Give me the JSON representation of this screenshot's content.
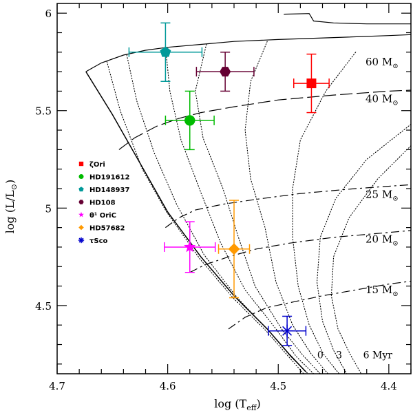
{
  "chart_data": {
    "type": "scatter",
    "title": "",
    "xlabel": "log (T",
    "xlabel_sub": "eff",
    "xlabel_close": ")",
    "ylabel": "log (L/L",
    "ylabel_close": ")",
    "xlim": [
      4.7,
      4.38
    ],
    "ylim": [
      4.15,
      6.05
    ],
    "x_reversed": true,
    "xticks": [
      {
        "value": 4.7,
        "label": "4.7"
      },
      {
        "value": 4.6,
        "label": "4.6"
      },
      {
        "value": 4.5,
        "label": "4.5"
      },
      {
        "value": 4.4,
        "label": "4.4"
      }
    ],
    "yticks": [
      {
        "value": 4.5,
        "label": "4.5"
      },
      {
        "value": 5.0,
        "label": "5"
      },
      {
        "value": 5.5,
        "label": "5.5"
      },
      {
        "value": 6.0,
        "label": "6"
      }
    ],
    "legend_position": "middle-left",
    "series": [
      {
        "name": "ζOri",
        "color": "#ff0000",
        "marker": "square",
        "x": 4.47,
        "y": 5.64,
        "xerr": 0.016,
        "yerr": 0.15
      },
      {
        "name": "HD191612",
        "color": "#00bb00",
        "marker": "circle",
        "x": 4.58,
        "y": 5.45,
        "xerr": 0.022,
        "yerr": 0.15
      },
      {
        "name": "HD148937",
        "color": "#009999",
        "marker": "pentagon",
        "x": 4.602,
        "y": 5.8,
        "xerr": 0.033,
        "yerr": 0.15
      },
      {
        "name": "HD108",
        "color": "#660033",
        "marker": "hexagon",
        "x": 4.548,
        "y": 5.7,
        "xerr": 0.026,
        "yerr": 0.1
      },
      {
        "name": "θ¹ OriC",
        "color": "#ff00ff",
        "marker": "star",
        "x": 4.58,
        "y": 4.8,
        "xerr": 0.023,
        "yerr": 0.13
      },
      {
        "name": "HD57682",
        "color": "#ff9900",
        "marker": "diamond",
        "x": 4.54,
        "y": 4.79,
        "xerr": 0.014,
        "yerr": 0.25
      },
      {
        "name": "τSco",
        "color": "#0000cc",
        "marker": "asterisk",
        "x": 4.492,
        "y": 4.37,
        "xerr": 0.017,
        "yerr": 0.075
      }
    ],
    "tracks": [
      {
        "mass_label": "60 M",
        "label_y": 5.75,
        "dash": "",
        "points": [
          [
            4.674,
            5.7
          ],
          [
            4.66,
            5.745
          ],
          [
            4.64,
            5.785
          ],
          [
            4.62,
            5.81
          ],
          [
            4.6,
            5.825
          ],
          [
            4.57,
            5.84
          ],
          [
            4.54,
            5.855
          ],
          [
            4.5,
            5.865
          ],
          [
            4.45,
            5.875
          ],
          [
            4.4,
            5.885
          ],
          [
            4.38,
            5.89
          ]
        ]
      },
      {
        "mass_label": "40 M",
        "label_y": 5.56,
        "dash": "18,6",
        "points": [
          [
            4.644,
            5.3
          ],
          [
            4.63,
            5.36
          ],
          [
            4.61,
            5.42
          ],
          [
            4.59,
            5.46
          ],
          [
            4.57,
            5.49
          ],
          [
            4.54,
            5.52
          ],
          [
            4.5,
            5.555
          ],
          [
            4.45,
            5.58
          ],
          [
            4.4,
            5.6
          ],
          [
            4.38,
            5.605
          ]
        ]
      },
      {
        "mass_label": "25 M",
        "label_y": 5.07,
        "dash": "12,5,3,5",
        "points": [
          [
            4.602,
            4.9
          ],
          [
            4.59,
            4.95
          ],
          [
            4.575,
            4.99
          ],
          [
            4.55,
            5.02
          ],
          [
            4.52,
            5.045
          ],
          [
            4.48,
            5.075
          ],
          [
            4.43,
            5.1
          ],
          [
            4.38,
            5.12
          ]
        ]
      },
      {
        "mass_label": "20 M",
        "label_y": 4.84,
        "dash": "12,5,3,5",
        "points": [
          [
            4.58,
            4.67
          ],
          [
            4.566,
            4.71
          ],
          [
            4.545,
            4.75
          ],
          [
            4.52,
            4.79
          ],
          [
            4.49,
            4.82
          ],
          [
            4.45,
            4.85
          ],
          [
            4.41,
            4.87
          ],
          [
            4.38,
            4.885
          ]
        ]
      },
      {
        "mass_label": "15 M",
        "label_y": 4.58,
        "dash": "12,5,3,5",
        "points": [
          [
            4.545,
            4.38
          ],
          [
            4.53,
            4.44
          ],
          [
            4.51,
            4.49
          ],
          [
            4.485,
            4.52
          ],
          [
            4.46,
            4.55
          ],
          [
            4.43,
            4.58
          ],
          [
            4.4,
            4.61
          ],
          [
            4.38,
            4.625
          ]
        ]
      }
    ],
    "top_track": {
      "points": [
        [
          4.495,
          5.995
        ],
        [
          4.472,
          5.998
        ],
        [
          4.468,
          5.96
        ],
        [
          4.45,
          5.95
        ],
        [
          4.42,
          5.945
        ],
        [
          4.38,
          5.945
        ]
      ]
    },
    "zams": {
      "points": [
        [
          4.674,
          5.7
        ],
        [
          4.65,
          5.48
        ],
        [
          4.62,
          5.18
        ],
        [
          4.6,
          4.98
        ],
        [
          4.57,
          4.75
        ],
        [
          4.54,
          4.55
        ],
        [
          4.51,
          4.38
        ],
        [
          4.49,
          4.25
        ],
        [
          4.475,
          4.16
        ]
      ]
    },
    "isochrones": [
      {
        "label": "",
        "points": [
          [
            4.655,
            5.752
          ],
          [
            4.643,
            5.5
          ],
          [
            4.623,
            5.2
          ],
          [
            4.601,
            4.98
          ],
          [
            4.571,
            4.74
          ],
          [
            4.541,
            4.54
          ],
          [
            4.511,
            4.37
          ],
          [
            4.491,
            4.24
          ],
          [
            4.477,
            4.15
          ]
        ]
      },
      {
        "label": "",
        "points": [
          [
            4.637,
            5.785
          ],
          [
            4.628,
            5.55
          ],
          [
            4.612,
            5.28
          ],
          [
            4.592,
            5.02
          ],
          [
            4.567,
            4.76
          ],
          [
            4.537,
            4.54
          ],
          [
            4.507,
            4.36
          ],
          [
            4.489,
            4.24
          ],
          [
            4.473,
            4.15
          ]
        ]
      },
      {
        "label": "",
        "points": [
          [
            4.602,
            5.83
          ],
          [
            4.598,
            5.6
          ],
          [
            4.588,
            5.35
          ],
          [
            4.57,
            5.08
          ],
          [
            4.552,
            4.82
          ],
          [
            4.53,
            4.58
          ],
          [
            4.502,
            4.38
          ],
          [
            4.484,
            4.24
          ],
          [
            4.468,
            4.15
          ]
        ]
      },
      {
        "label": "",
        "points": [
          [
            4.565,
            5.84
          ],
          [
            4.575,
            5.6
          ],
          [
            4.568,
            5.36
          ],
          [
            4.55,
            5.1
          ],
          [
            4.536,
            4.85
          ],
          [
            4.521,
            4.6
          ],
          [
            4.497,
            4.38
          ],
          [
            4.477,
            4.24
          ],
          [
            4.462,
            4.15
          ]
        ]
      },
      {
        "label": "",
        "points": [
          [
            4.51,
            5.855
          ],
          [
            4.525,
            5.65
          ],
          [
            4.53,
            5.4
          ],
          [
            4.525,
            5.15
          ],
          [
            4.512,
            4.9
          ],
          [
            4.502,
            4.62
          ],
          [
            4.487,
            4.4
          ],
          [
            4.47,
            4.25
          ],
          [
            4.455,
            4.15
          ]
        ]
      },
      {
        "label": "",
        "points": [
          [
            4.43,
            5.8
          ],
          [
            4.457,
            5.6
          ],
          [
            4.48,
            5.35
          ],
          [
            4.487,
            5.1
          ],
          [
            4.487,
            4.85
          ],
          [
            4.482,
            4.6
          ],
          [
            4.472,
            4.4
          ],
          [
            4.459,
            4.25
          ],
          [
            4.445,
            4.15
          ]
        ]
      },
      {
        "label": "",
        "points": [
          [
            4.38,
            5.43
          ],
          [
            4.42,
            5.25
          ],
          [
            4.448,
            5.05
          ],
          [
            4.462,
            4.85
          ],
          [
            4.465,
            4.62
          ],
          [
            4.46,
            4.42
          ],
          [
            4.45,
            4.27
          ],
          [
            4.438,
            4.15
          ]
        ]
      },
      {
        "label": "",
        "points": [
          [
            4.38,
            5.32
          ],
          [
            4.41,
            5.15
          ],
          [
            4.436,
            4.95
          ],
          [
            4.45,
            4.75
          ],
          [
            4.452,
            4.55
          ],
          [
            4.446,
            4.38
          ],
          [
            4.435,
            4.25
          ],
          [
            4.425,
            4.15
          ]
        ]
      }
    ],
    "age_labels": [
      {
        "text": "0",
        "x": 4.462,
        "y": 4.23
      },
      {
        "text": "3",
        "x": 4.445,
        "y": 4.23
      },
      {
        "text": "6 Myr",
        "x": 4.41,
        "y": 4.23
      }
    ]
  }
}
